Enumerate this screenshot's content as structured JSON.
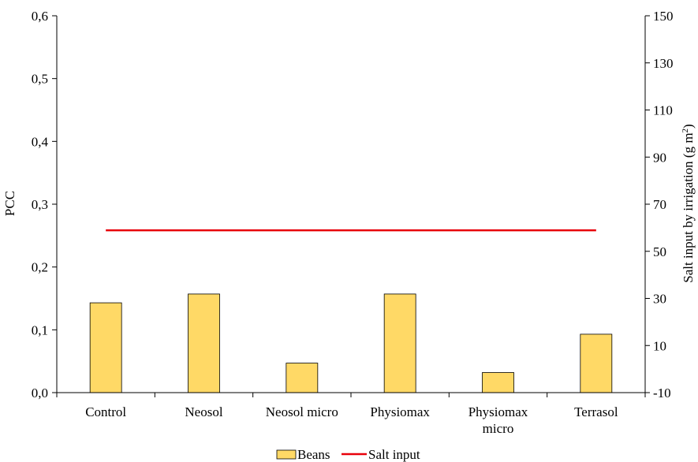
{
  "chart_data": {
    "type": "bar",
    "categories": [
      "Control",
      "Neosol",
      "Neosol micro",
      "Physiomax",
      "Physiomax micro",
      "Terrasol"
    ],
    "category_lines": [
      [
        "Control"
      ],
      [
        "Neosol"
      ],
      [
        "Neosol micro"
      ],
      [
        "Physiomax"
      ],
      [
        "Physiomax",
        "micro"
      ],
      [
        "Terrasol"
      ]
    ],
    "series": [
      {
        "name": "Beans",
        "axis": "left",
        "type": "bar",
        "color": "#FFD966",
        "values": [
          0.143,
          0.157,
          0.047,
          0.157,
          0.032,
          0.093
        ]
      },
      {
        "name": "Salt input",
        "axis": "right",
        "type": "line",
        "color": "#E8000B",
        "values": [
          58.9,
          58.9,
          58.9,
          58.9,
          58.9,
          58.9
        ]
      }
    ],
    "ylabel": "PCC",
    "y2label": "Salt input by irrigation (g m",
    "y2label_sup": "2",
    "y2label_end": ")",
    "ylim": [
      0,
      0.6
    ],
    "yticks": [
      "0,0",
      "0,1",
      "0,2",
      "0,3",
      "0,4",
      "0,5",
      "0,6"
    ],
    "y2lim": [
      -10,
      150
    ],
    "y2ticks": [
      "-10",
      "10",
      "30",
      "50",
      "70",
      "90",
      "110",
      "130",
      "150"
    ],
    "legend_position": "bottom-center",
    "grid": false
  }
}
